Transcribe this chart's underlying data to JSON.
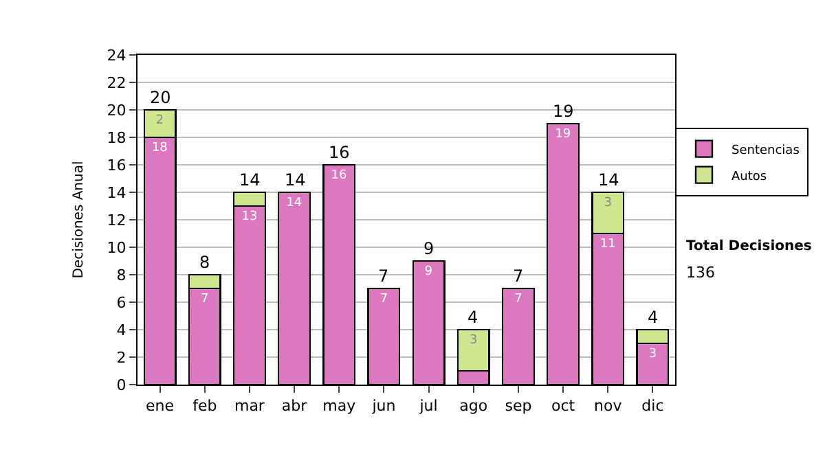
{
  "chart_data": {
    "type": "bar",
    "stacked": true,
    "ylabel": "Decisiones Anual",
    "categories": [
      "ene",
      "feb",
      "mar",
      "abr",
      "may",
      "jun",
      "jul",
      "ago",
      "sep",
      "oct",
      "nov",
      "dic"
    ],
    "series": [
      {
        "name": "Sentencias",
        "color": "#dc78bf",
        "values": [
          18,
          7,
          13,
          14,
          16,
          7,
          9,
          1,
          7,
          19,
          11,
          3
        ],
        "value_labels": [
          "18",
          "7",
          "13",
          "14",
          "16",
          "7",
          "9",
          null,
          "7",
          "19",
          "11",
          "3"
        ]
      },
      {
        "name": "Autos",
        "color": "#cfe78f",
        "values": [
          2,
          1,
          1,
          null,
          null,
          null,
          null,
          3,
          null,
          null,
          3,
          1
        ],
        "value_labels": [
          "2",
          null,
          null,
          null,
          null,
          null,
          null,
          "3",
          null,
          null,
          "3",
          null
        ]
      }
    ],
    "totals": [
      "20",
      "8",
      "14",
      "14",
      "16",
      "7",
      "9",
      "4",
      "7",
      "19",
      "14",
      "4"
    ],
    "ylim": [
      0,
      24
    ],
    "yticks": [
      0,
      2,
      4,
      6,
      8,
      10,
      12,
      14,
      16,
      18,
      20,
      22,
      24
    ],
    "grid": "y",
    "legend": "right",
    "annotations": [
      "Total Decisiones",
      "136"
    ]
  }
}
